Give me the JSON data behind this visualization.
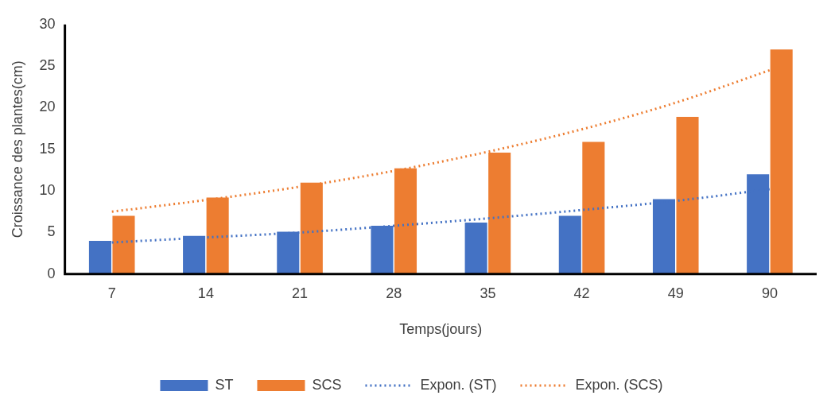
{
  "chart_data": {
    "type": "bar",
    "xlabel": "Temps(jours)",
    "ylabel": "Croissance des plantes(cm)",
    "categories": [
      "7",
      "14",
      "21",
      "28",
      "35",
      "42",
      "49",
      "90"
    ],
    "ylim": [
      0,
      30
    ],
    "yticks": [
      0,
      5,
      10,
      15,
      20,
      25,
      30
    ],
    "grid": false,
    "legend": "bottom",
    "series": [
      {
        "name": "ST",
        "color": "#4472c4",
        "values": [
          4,
          4.6,
          5.1,
          5.8,
          6.2,
          7,
          9,
          12
        ]
      },
      {
        "name": "SCS",
        "color": "#ed7d31",
        "values": [
          7,
          9.2,
          11,
          12.7,
          14.6,
          15.9,
          18.9,
          27
        ]
      },
      {
        "name": "Expon. (ST)",
        "type": "line",
        "color": "#4472c4",
        "line_style": "dotted",
        "marker": "none",
        "values": [
          3.8,
          4.4,
          5,
          5.8,
          6.7,
          7.7,
          8.8,
          10.2
        ]
      },
      {
        "name": "Expon. (SCS)",
        "type": "line",
        "color": "#ed7d31",
        "line_style": "dotted",
        "marker": "none",
        "values": [
          7.5,
          8.9,
          10.5,
          12.4,
          14.7,
          17.4,
          20.6,
          24.5
        ]
      }
    ]
  }
}
